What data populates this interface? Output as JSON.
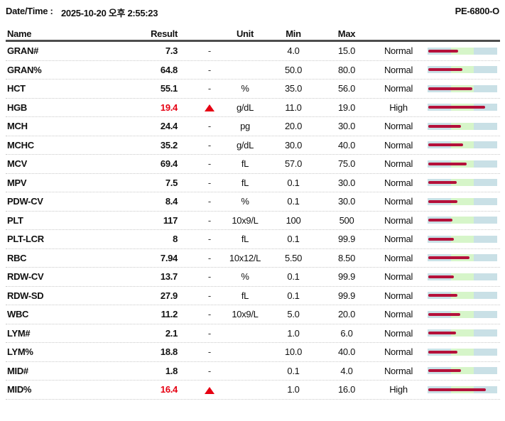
{
  "header": {
    "datetime_label": "Date/Time :",
    "datetime_value": "2025-10-20 오후 2:55:23",
    "device_model": "PE-6800-O"
  },
  "colors": {
    "alert_red": "#e60012",
    "bar_value_line": "#b5103a",
    "bar_zone_outer": "#c9e0e6",
    "bar_zone_normal": "#d6f5c9"
  },
  "table": {
    "columns": {
      "name": "Name",
      "result": "Result",
      "unit": "Unit",
      "min": "Min",
      "max": "Max"
    },
    "rows": [
      {
        "name": "GRAN#",
        "result": "7.3",
        "flag": "-",
        "unit": "",
        "min": "4.0",
        "max": "15.0",
        "status": "Normal",
        "bar_fill": 0.44
      },
      {
        "name": "GRAN%",
        "result": "64.8",
        "flag": "-",
        "unit": "",
        "min": "50.0",
        "max": "80.0",
        "status": "Normal",
        "bar_fill": 0.5
      },
      {
        "name": "HCT",
        "result": "55.1",
        "flag": "-",
        "unit": "%",
        "min": "35.0",
        "max": "56.0",
        "status": "Normal",
        "bar_fill": 0.65
      },
      {
        "name": "HGB",
        "result": "19.4",
        "flag": "high",
        "unit": "g/dL",
        "min": "11.0",
        "max": "19.0",
        "status": "High",
        "bar_fill": 0.83
      },
      {
        "name": "MCH",
        "result": "24.4",
        "flag": "-",
        "unit": "pg",
        "min": "20.0",
        "max": "30.0",
        "status": "Normal",
        "bar_fill": 0.48
      },
      {
        "name": "MCHC",
        "result": "35.2",
        "flag": "-",
        "unit": "g/dL",
        "min": "30.0",
        "max": "40.0",
        "status": "Normal",
        "bar_fill": 0.51
      },
      {
        "name": "MCV",
        "result": "69.4",
        "flag": "-",
        "unit": "fL",
        "min": "57.0",
        "max": "75.0",
        "status": "Normal",
        "bar_fill": 0.56
      },
      {
        "name": "MPV",
        "result": "7.5",
        "flag": "-",
        "unit": "fL",
        "min": "0.1",
        "max": "30.0",
        "status": "Normal",
        "bar_fill": 0.42
      },
      {
        "name": "PDW-CV",
        "result": "8.4",
        "flag": "-",
        "unit": "%",
        "min": "0.1",
        "max": "30.0",
        "status": "Normal",
        "bar_fill": 0.43
      },
      {
        "name": "PLT",
        "result": "117",
        "flag": "-",
        "unit": "10x9/L",
        "min": "100",
        "max": "500",
        "status": "Normal",
        "bar_fill": 0.35
      },
      {
        "name": "PLT-LCR",
        "result": "8",
        "flag": "-",
        "unit": "fL",
        "min": "0.1",
        "max": "99.9",
        "status": "Normal",
        "bar_fill": 0.37
      },
      {
        "name": "RBC",
        "result": "7.94",
        "flag": "-",
        "unit": "10x12/L",
        "min": "5.50",
        "max": "8.50",
        "status": "Normal",
        "bar_fill": 0.6
      },
      {
        "name": "RDW-CV",
        "result": "13.7",
        "flag": "-",
        "unit": "%",
        "min": "0.1",
        "max": "99.9",
        "status": "Normal",
        "bar_fill": 0.38
      },
      {
        "name": "RDW-SD",
        "result": "27.9",
        "flag": "-",
        "unit": "fL",
        "min": "0.1",
        "max": "99.9",
        "status": "Normal",
        "bar_fill": 0.43
      },
      {
        "name": "WBC",
        "result": "11.2",
        "flag": "-",
        "unit": "10x9/L",
        "min": "5.0",
        "max": "20.0",
        "status": "Normal",
        "bar_fill": 0.47
      },
      {
        "name": "LYM#",
        "result": "2.1",
        "flag": "-",
        "unit": "",
        "min": "1.0",
        "max": "6.0",
        "status": "Normal",
        "bar_fill": 0.41
      },
      {
        "name": "LYM%",
        "result": "18.8",
        "flag": "-",
        "unit": "",
        "min": "10.0",
        "max": "40.0",
        "status": "Normal",
        "bar_fill": 0.43
      },
      {
        "name": "MID#",
        "result": "1.8",
        "flag": "-",
        "unit": "",
        "min": "0.1",
        "max": "4.0",
        "status": "Normal",
        "bar_fill": 0.48
      },
      {
        "name": "MID%",
        "result": "16.4",
        "flag": "high",
        "unit": "",
        "min": "1.0",
        "max": "16.0",
        "status": "High",
        "bar_fill": 0.84
      }
    ]
  }
}
